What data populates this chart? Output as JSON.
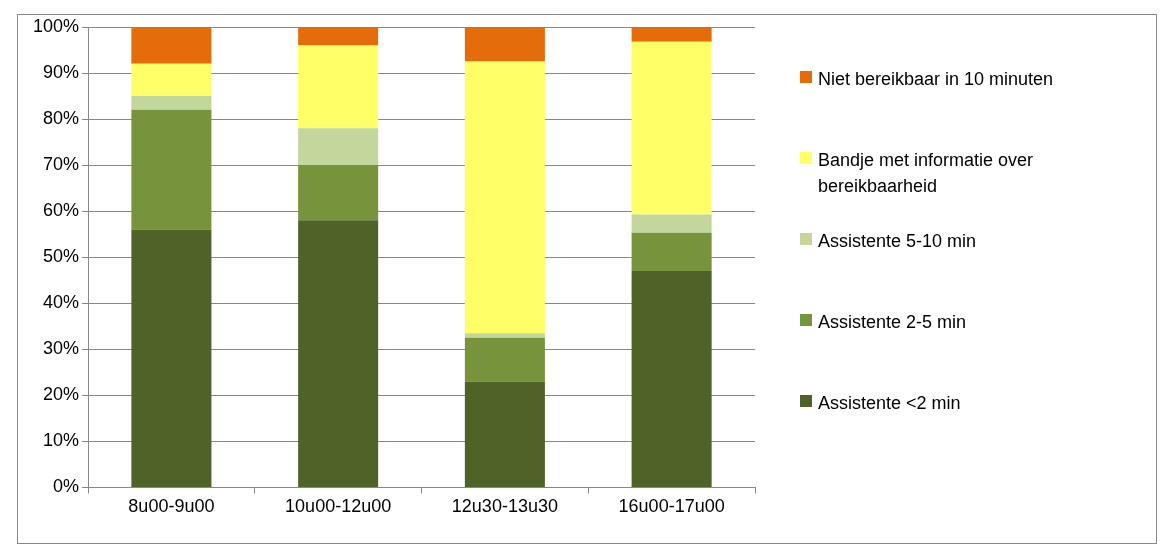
{
  "chart_data": {
    "type": "bar",
    "stacked": true,
    "categories": [
      "8u00-9u00",
      "10u00-12u00",
      "12u30-13u30",
      "16u00-17u00"
    ],
    "series": [
      {
        "name": "Assistente <2 min",
        "color": "#4f6228",
        "values": [
          56,
          58,
          23,
          47
        ]
      },
      {
        "name": "Assistente 2-5 min",
        "color": "#77933c",
        "values": [
          26,
          12,
          9.5,
          8.3
        ]
      },
      {
        "name": "Assistente 5-10 min",
        "color": "#c3d69b",
        "values": [
          3,
          8,
          1,
          4
        ]
      },
      {
        "name": "Bandje met informatie over bereikbaarheid",
        "color": "#ffff66",
        "values": [
          7,
          18,
          59,
          37.5
        ]
      },
      {
        "name": "Niet bereikbaar in 10 minuten",
        "color": "#e46c0a",
        "values": [
          8,
          4,
          7.5,
          3.2
        ]
      }
    ],
    "ylim": [
      0,
      100
    ],
    "yticks": [
      {
        "value": 0,
        "label": "0%"
      },
      {
        "value": 10,
        "label": "10%"
      },
      {
        "value": 20,
        "label": "20%"
      },
      {
        "value": 30,
        "label": "30%"
      },
      {
        "value": 40,
        "label": "40%"
      },
      {
        "value": 50,
        "label": "50%"
      },
      {
        "value": 60,
        "label": "60%"
      },
      {
        "value": 70,
        "label": "70%"
      },
      {
        "value": 80,
        "label": "80%"
      },
      {
        "value": 90,
        "label": "90%"
      },
      {
        "value": 100,
        "label": "100%"
      }
    ],
    "grid": "y",
    "legend": "right"
  }
}
